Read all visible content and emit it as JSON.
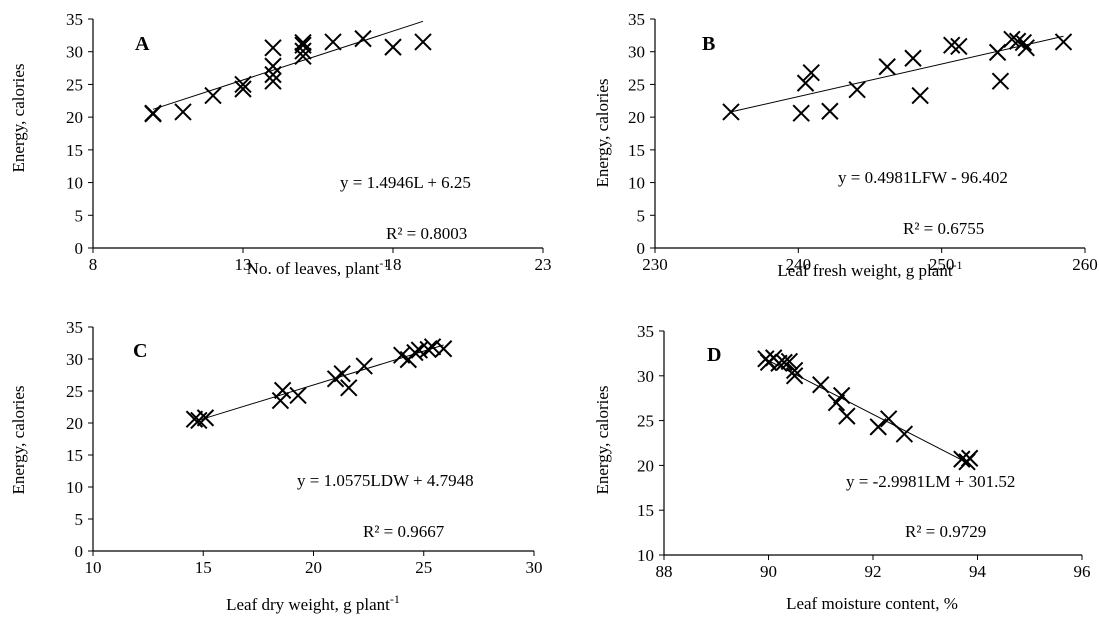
{
  "chart_data": [
    {
      "type": "scatter",
      "panel_label": "A",
      "xlabel": "No. of leaves, plant",
      "xlabel_sup": "-1",
      "ylabel": "Energy, calories",
      "xlim": [
        8,
        23
      ],
      "ylim": [
        0,
        35
      ],
      "xticks": [
        8,
        13,
        18,
        23
      ],
      "yticks": [
        0,
        5,
        10,
        15,
        20,
        25,
        30,
        35
      ],
      "equation": "y = 1.4946L + 6.25",
      "r2_label": "R² = 0.8003",
      "trendline": {
        "slope": 1.4946,
        "intercept": 6.25,
        "x_range": [
          10,
          19
        ]
      },
      "points": [
        [
          10,
          20.6
        ],
        [
          10,
          20.5
        ],
        [
          11,
          20.8
        ],
        [
          12,
          23.3
        ],
        [
          13,
          24.3
        ],
        [
          13,
          25.0
        ],
        [
          14,
          25.5
        ],
        [
          14,
          26.5
        ],
        [
          14,
          27.8
        ],
        [
          14,
          30.6
        ],
        [
          15,
          29.3
        ],
        [
          15,
          30.1
        ],
        [
          15,
          31.0
        ],
        [
          15,
          31.4
        ],
        [
          16,
          31.5
        ],
        [
          17,
          32.0
        ],
        [
          18,
          30.7
        ],
        [
          19,
          31.5
        ]
      ],
      "grid": false,
      "legend": "none"
    },
    {
      "type": "scatter",
      "panel_label": "B",
      "xlabel": "Leaf fresh weight, g plant",
      "xlabel_sup": "-1",
      "ylabel": "Energy, calories",
      "xlim": [
        230,
        260
      ],
      "ylim": [
        0,
        35
      ],
      "xticks": [
        230,
        240,
        250,
        260
      ],
      "yticks": [
        0,
        5,
        10,
        15,
        20,
        25,
        30,
        35
      ],
      "equation": "y = 0.4981LFW - 96.402",
      "r2_label": "R² = 0.6755",
      "trendline": {
        "slope": 0.4981,
        "intercept": -96.402,
        "x_range": [
          235.3,
          258.5
        ]
      },
      "points": [
        [
          235.3,
          20.8
        ],
        [
          240.2,
          20.6
        ],
        [
          240.5,
          25.2
        ],
        [
          240.9,
          26.8
        ],
        [
          242.2,
          20.9
        ],
        [
          244.1,
          24.2
        ],
        [
          246.2,
          27.7
        ],
        [
          248.0,
          29.0
        ],
        [
          248.5,
          23.3
        ],
        [
          250.7,
          31.0
        ],
        [
          251.2,
          30.8
        ],
        [
          253.9,
          29.9
        ],
        [
          254.1,
          25.5
        ],
        [
          254.9,
          31.9
        ],
        [
          255.3,
          31.6
        ],
        [
          255.7,
          31.4
        ],
        [
          255.9,
          30.6
        ],
        [
          258.5,
          31.5
        ]
      ],
      "grid": false,
      "legend": "none"
    },
    {
      "type": "scatter",
      "panel_label": "C",
      "xlabel": "Leaf dry weight, g plant",
      "xlabel_sup": "-1",
      "ylabel": "Energy, calories",
      "xlim": [
        10,
        30
      ],
      "ylim": [
        0,
        35
      ],
      "xticks": [
        10,
        15,
        20,
        25,
        30
      ],
      "yticks": [
        0,
        5,
        10,
        15,
        20,
        25,
        30,
        35
      ],
      "equation": "y = 1.0575LDW + 4.7948",
      "r2_label": "R² = 0.9667",
      "trendline": {
        "slope": 1.0575,
        "intercept": 4.7948,
        "x_range": [
          14.7,
          25.9
        ]
      },
      "points": [
        [
          14.6,
          20.6
        ],
        [
          14.8,
          20.4
        ],
        [
          15.1,
          20.8
        ],
        [
          18.5,
          23.5
        ],
        [
          18.6,
          25.1
        ],
        [
          19.3,
          24.3
        ],
        [
          21.0,
          26.9
        ],
        [
          21.3,
          27.7
        ],
        [
          21.6,
          25.5
        ],
        [
          22.3,
          28.9
        ],
        [
          24.0,
          30.6
        ],
        [
          24.3,
          29.9
        ],
        [
          24.6,
          31.0
        ],
        [
          24.8,
          31.4
        ],
        [
          25.2,
          31.5
        ],
        [
          25.4,
          31.9
        ],
        [
          25.9,
          31.6
        ]
      ],
      "grid": false,
      "legend": "none"
    },
    {
      "type": "scatter",
      "panel_label": "D",
      "xlabel": "Leaf moisture content, %",
      "xlabel_sup": "",
      "ylabel": "Energy, calories",
      "xlim": [
        88,
        96
      ],
      "ylim": [
        10,
        35
      ],
      "xticks": [
        88,
        90,
        92,
        94,
        96
      ],
      "yticks": [
        10,
        15,
        20,
        25,
        30,
        35
      ],
      "equation": "y = -2.9981LM + 301.52",
      "r2_label": "R² = 0.9729",
      "trendline": {
        "slope": -2.9981,
        "intercept": 301.52,
        "x_range": [
          89.9,
          93.8
        ]
      },
      "points": [
        [
          89.95,
          31.9
        ],
        [
          90.0,
          31.5
        ],
        [
          90.1,
          32.0
        ],
        [
          90.2,
          31.4
        ],
        [
          90.3,
          31.5
        ],
        [
          90.4,
          31.6
        ],
        [
          90.5,
          30.6
        ],
        [
          90.5,
          30.0
        ],
        [
          91.0,
          29.0
        ],
        [
          91.3,
          27.0
        ],
        [
          91.4,
          27.8
        ],
        [
          91.5,
          25.5
        ],
        [
          92.1,
          24.3
        ],
        [
          92.3,
          25.2
        ],
        [
          92.6,
          23.5
        ],
        [
          93.7,
          20.7
        ],
        [
          93.8,
          20.4
        ],
        [
          93.85,
          20.8
        ]
      ],
      "grid": false,
      "legend": "none"
    }
  ]
}
